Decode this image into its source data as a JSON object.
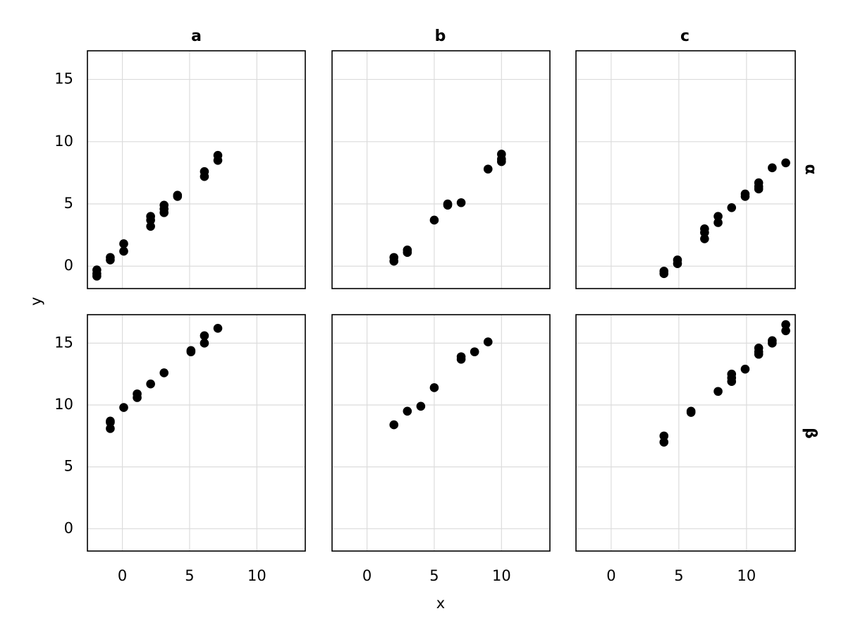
{
  "chart_data": {
    "type": "scatter",
    "layout": "facet-grid",
    "xlabel": "x",
    "ylabel": "y",
    "xlim": [
      -2.6,
      13.6
    ],
    "ylim": [
      -1.8,
      17.3
    ],
    "xticks": [
      0,
      5,
      10
    ],
    "yticks": [
      0,
      5,
      10,
      15
    ],
    "column_titles": [
      "a",
      "b",
      "c"
    ],
    "row_titles": [
      "α",
      "β"
    ],
    "grid": true,
    "marker_color": "#000000",
    "panels": [
      {
        "row": "α",
        "col": "a",
        "points": [
          {
            "x": -1.9,
            "y": -0.3
          },
          {
            "x": -1.9,
            "y": -0.6
          },
          {
            "x": -1.9,
            "y": -0.8
          },
          {
            "x": -0.9,
            "y": 0.5
          },
          {
            "x": -0.9,
            "y": 0.7
          },
          {
            "x": 0.1,
            "y": 1.2
          },
          {
            "x": 0.1,
            "y": 1.8
          },
          {
            "x": 2.1,
            "y": 3.2
          },
          {
            "x": 2.1,
            "y": 3.7
          },
          {
            "x": 2.1,
            "y": 4.0
          },
          {
            "x": 3.1,
            "y": 4.3
          },
          {
            "x": 3.1,
            "y": 4.6
          },
          {
            "x": 3.1,
            "y": 4.9
          },
          {
            "x": 4.1,
            "y": 5.6
          },
          {
            "x": 4.1,
            "y": 5.7
          },
          {
            "x": 6.1,
            "y": 7.2
          },
          {
            "x": 6.1,
            "y": 7.6
          },
          {
            "x": 7.1,
            "y": 8.5
          },
          {
            "x": 7.1,
            "y": 8.9
          }
        ]
      },
      {
        "row": "α",
        "col": "b",
        "points": [
          {
            "x": 2.0,
            "y": 0.4
          },
          {
            "x": 2.0,
            "y": 0.7
          },
          {
            "x": 3.0,
            "y": 1.1
          },
          {
            "x": 3.0,
            "y": 1.3
          },
          {
            "x": 5.0,
            "y": 3.7
          },
          {
            "x": 6.0,
            "y": 4.9
          },
          {
            "x": 6.0,
            "y": 5.0
          },
          {
            "x": 7.0,
            "y": 5.1
          },
          {
            "x": 9.0,
            "y": 7.8
          },
          {
            "x": 10.0,
            "y": 8.4
          },
          {
            "x": 10.0,
            "y": 8.6
          },
          {
            "x": 10.0,
            "y": 9.0
          }
        ]
      },
      {
        "row": "α",
        "col": "c",
        "points": [
          {
            "x": 3.9,
            "y": -0.4
          },
          {
            "x": 3.9,
            "y": -0.6
          },
          {
            "x": 4.9,
            "y": 0.2
          },
          {
            "x": 4.9,
            "y": 0.5
          },
          {
            "x": 6.9,
            "y": 2.2
          },
          {
            "x": 6.9,
            "y": 2.7
          },
          {
            "x": 6.9,
            "y": 3.0
          },
          {
            "x": 7.9,
            "y": 3.5
          },
          {
            "x": 7.9,
            "y": 4.0
          },
          {
            "x": 8.9,
            "y": 4.7
          },
          {
            "x": 9.9,
            "y": 5.6
          },
          {
            "x": 9.9,
            "y": 5.8
          },
          {
            "x": 10.9,
            "y": 6.2
          },
          {
            "x": 10.9,
            "y": 6.4
          },
          {
            "x": 10.9,
            "y": 6.7
          },
          {
            "x": 11.9,
            "y": 7.9
          },
          {
            "x": 12.9,
            "y": 8.3
          }
        ]
      },
      {
        "row": "β",
        "col": "a",
        "points": [
          {
            "x": -0.9,
            "y": 8.1
          },
          {
            "x": -0.9,
            "y": 8.6
          },
          {
            "x": -0.9,
            "y": 8.7
          },
          {
            "x": 0.1,
            "y": 9.8
          },
          {
            "x": 1.1,
            "y": 10.6
          },
          {
            "x": 1.1,
            "y": 10.9
          },
          {
            "x": 2.1,
            "y": 11.7
          },
          {
            "x": 3.1,
            "y": 12.6
          },
          {
            "x": 5.1,
            "y": 14.3
          },
          {
            "x": 5.1,
            "y": 14.4
          },
          {
            "x": 6.1,
            "y": 15.0
          },
          {
            "x": 6.1,
            "y": 15.6
          },
          {
            "x": 7.1,
            "y": 16.2
          }
        ]
      },
      {
        "row": "β",
        "col": "b",
        "points": [
          {
            "x": 2.0,
            "y": 8.4
          },
          {
            "x": 3.0,
            "y": 9.5
          },
          {
            "x": 4.0,
            "y": 9.9
          },
          {
            "x": 5.0,
            "y": 11.4
          },
          {
            "x": 7.0,
            "y": 13.7
          },
          {
            "x": 7.0,
            "y": 13.9
          },
          {
            "x": 8.0,
            "y": 14.3
          },
          {
            "x": 9.0,
            "y": 15.1
          }
        ]
      },
      {
        "row": "β",
        "col": "c",
        "points": [
          {
            "x": 3.9,
            "y": 7.0
          },
          {
            "x": 3.9,
            "y": 7.5
          },
          {
            "x": 5.9,
            "y": 9.4
          },
          {
            "x": 5.9,
            "y": 9.5
          },
          {
            "x": 7.9,
            "y": 11.1
          },
          {
            "x": 8.9,
            "y": 11.9
          },
          {
            "x": 8.9,
            "y": 12.2
          },
          {
            "x": 8.9,
            "y": 12.5
          },
          {
            "x": 9.9,
            "y": 12.9
          },
          {
            "x": 10.9,
            "y": 14.1
          },
          {
            "x": 10.9,
            "y": 14.3
          },
          {
            "x": 10.9,
            "y": 14.6
          },
          {
            "x": 11.9,
            "y": 15.0
          },
          {
            "x": 11.9,
            "y": 15.2
          },
          {
            "x": 12.9,
            "y": 16.0
          },
          {
            "x": 12.9,
            "y": 16.5
          }
        ]
      }
    ]
  }
}
